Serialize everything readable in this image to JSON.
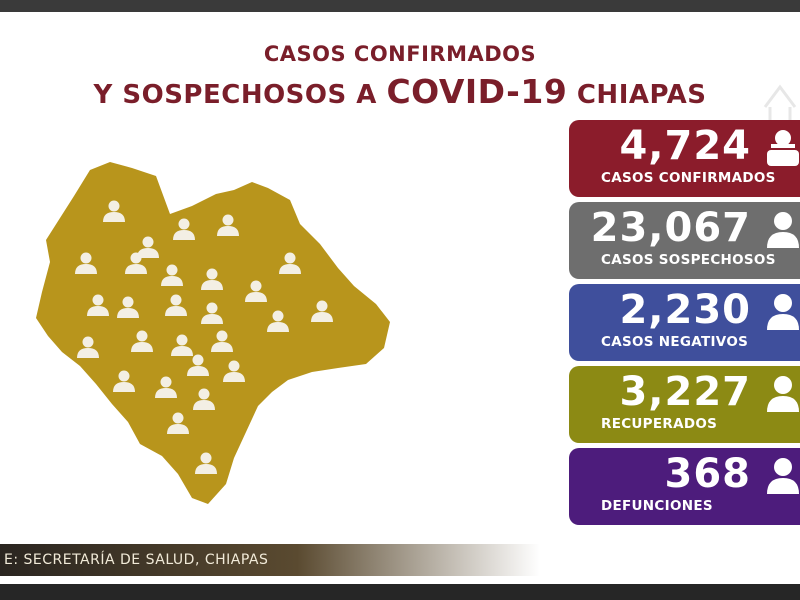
{
  "title": {
    "line1": "CASOS CONFIRMADOS",
    "line2_prefix": "Y SOSPECHOSOS A ",
    "line2_highlight": "COVID-19",
    "line2_suffix": " CHIAPAS"
  },
  "stats": [
    {
      "value": "4,724",
      "label": "CASOS CONFIRMADOS",
      "color": "#8b1c2b",
      "icon": "group-icon"
    },
    {
      "value": "23,067",
      "label": "CASOS SOSPECHOSOS",
      "color": "#6e6e6e",
      "icon": "person-icon"
    },
    {
      "value": "2,230",
      "label": "CASOS NEGATIVOS",
      "color": "#3f4f9c",
      "icon": "person-icon"
    },
    {
      "value": "3,227",
      "label": "RECUPERADOS",
      "color": "#8c8a14",
      "icon": "person-icon"
    },
    {
      "value": "368",
      "label": "DEFUNCIONES",
      "color": "#4d1c7c",
      "icon": "person-icon"
    }
  ],
  "source": "E: SECRETARÍA DE SALUD, CHIAPAS",
  "colors": {
    "title": "#7a1e2a",
    "map_fill": "#b8951c",
    "person_icon": "#f3efe4"
  },
  "map": {
    "person_icon_name": "person-icon"
  }
}
